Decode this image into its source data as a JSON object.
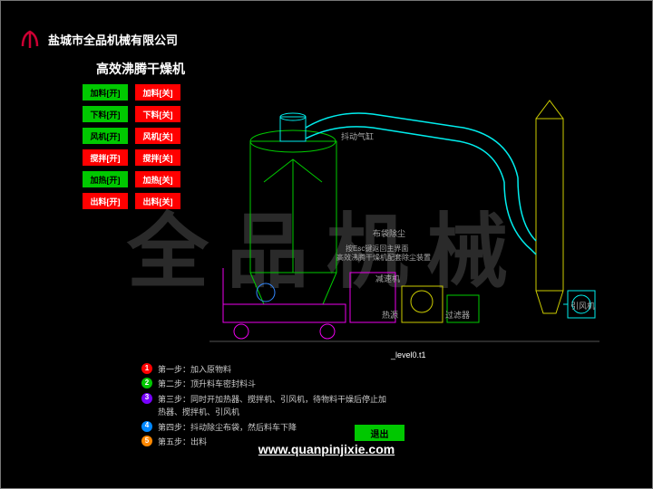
{
  "company": "盐城市全品机械有限公司",
  "title": "高效沸腾干燥机",
  "watermark": "全品机械",
  "website": "www.quanpinjixie.com",
  "level_label": "_level0.t1",
  "exit_label": "退出",
  "logo_color": "#cc0033",
  "buttons": [
    {
      "label": "加料[开]",
      "cls": "btn-green"
    },
    {
      "label": "加料[关]",
      "cls": "btn-red"
    },
    {
      "label": "下料[开]",
      "cls": "btn-green"
    },
    {
      "label": "下料[关]",
      "cls": "btn-red"
    },
    {
      "label": "风机[开]",
      "cls": "btn-green"
    },
    {
      "label": "风机[关]",
      "cls": "btn-red"
    },
    {
      "label": "搅拌[开]",
      "cls": "btn-red"
    },
    {
      "label": "搅拌[关]",
      "cls": "btn-red"
    },
    {
      "label": "加热[开]",
      "cls": "btn-green"
    },
    {
      "label": "加热[关]",
      "cls": "btn-red"
    },
    {
      "label": "出料[开]",
      "cls": "btn-red"
    },
    {
      "label": "出料[关]",
      "cls": "btn-red"
    }
  ],
  "steps": [
    {
      "num": "1",
      "color": "#ff0000",
      "text": "第一步：加入原物料"
    },
    {
      "num": "2",
      "color": "#00c800",
      "text": "第二步：顶升料车密封料斗"
    },
    {
      "num": "3",
      "color": "#7700ff",
      "text": "第三步：同时开加热器、搅拌机、引风机，待物料干燥后停止加热器、搅拌机、引风机"
    },
    {
      "num": "4",
      "color": "#0088ff",
      "text": "第四步：抖动除尘布袋，然后料车下降"
    },
    {
      "num": "5",
      "color": "#ff8800",
      "text": "第五步：出料"
    }
  ],
  "diagram_labels": {
    "shake": "抖动气缸",
    "bag": "布袋除尘",
    "setval": "按Esc键返回主界面",
    "setval2": "高效沸腾干燥机配套除尘装置",
    "reducer": "减速机",
    "heater": "热源",
    "filter": "过滤器",
    "fan": "引风机"
  },
  "colors": {
    "cyan": "#00eeee",
    "green": "#00cc00",
    "magenta": "#ee00ee",
    "yellow": "#cccc00",
    "blue": "#3388ff",
    "orange": "#ff9900"
  }
}
